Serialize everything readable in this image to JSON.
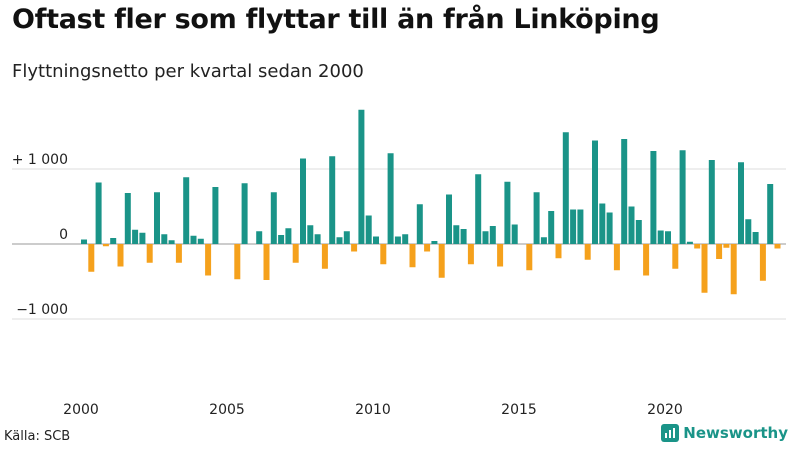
{
  "title": "Oftast fler som flyttar till än från Linköping",
  "subtitle": "Flyttningsnetto per kvartal sedan 2000",
  "source": "Källa: SCB",
  "brand": {
    "name": "Newsworthy",
    "logo_icon": "newsworthy-logo-icon"
  },
  "colors": {
    "positive": "#1a9488",
    "negative": "#f5a11c",
    "grid": "#dddddd",
    "zero": "#999999"
  },
  "chart_data": {
    "type": "bar",
    "title": "Oftast fler som flyttar till än från Linköping",
    "subtitle": "Flyttningsnetto per kvartal sedan 2000",
    "xlabel": "",
    "ylabel": "",
    "x_start": 2000,
    "periods_per_year": 4,
    "ylim": [
      -1900,
      1900
    ],
    "grid": true,
    "y_ticks": [
      {
        "value": 1000,
        "label": "+ 1 000"
      },
      {
        "value": 0,
        "label": "0"
      },
      {
        "value": -1000,
        "label": "−1 000"
      }
    ],
    "x_ticks": [
      {
        "value": 2000,
        "label": "2000"
      },
      {
        "value": 2005,
        "label": "2005"
      },
      {
        "value": 2010,
        "label": "2010"
      },
      {
        "value": 2015,
        "label": "2015"
      },
      {
        "value": 2020,
        "label": "2020"
      }
    ],
    "values": [
      60,
      -370,
      820,
      -30,
      80,
      -300,
      680,
      190,
      150,
      -250,
      690,
      130,
      50,
      -250,
      890,
      110,
      70,
      -420,
      760,
      0,
      0,
      -470,
      810,
      0,
      170,
      -480,
      690,
      120,
      210,
      -250,
      1140,
      250,
      130,
      -330,
      1170,
      90,
      170,
      -100,
      1790,
      380,
      100,
      -270,
      1210,
      100,
      130,
      -310,
      530,
      -100,
      40,
      -450,
      660,
      250,
      200,
      -270,
      930,
      170,
      240,
      -300,
      830,
      260,
      0,
      -350,
      690,
      90,
      440,
      -190,
      1490,
      460,
      460,
      -210,
      1380,
      540,
      420,
      -350,
      1400,
      500,
      320,
      -420,
      1240,
      180,
      170,
      -330,
      1250,
      30,
      -60,
      -650,
      1120,
      -200,
      -50,
      -670,
      1090,
      330,
      160,
      -490,
      800,
      -60
    ]
  }
}
